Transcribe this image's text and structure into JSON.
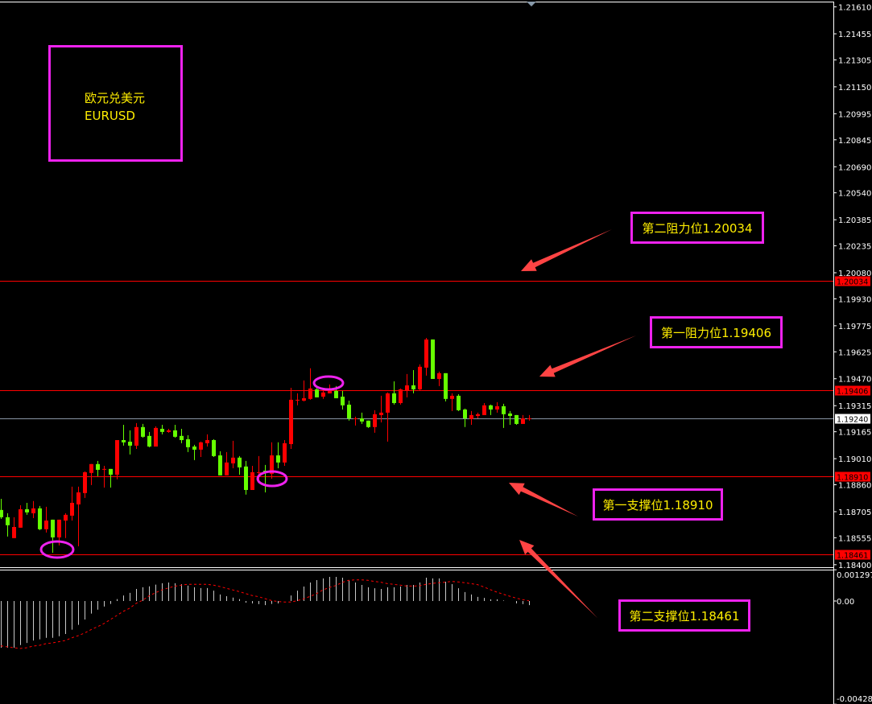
{
  "symbol": {
    "name_cn": "欧元兑美元",
    "name_en": "EURUSD"
  },
  "annotations": {
    "resistance2": "第二阻力位1.20034",
    "resistance1": "第一阻力位1.19406",
    "support1": "第一支撑位1.18910",
    "support2": "第二支撑位1.18461"
  },
  "colors": {
    "up": "#ff0000",
    "down": "#66ff00",
    "level": "#ff0000",
    "annotation_border": "#ee22ee",
    "annotation_text": "#ffee00",
    "arrow": "#ff4444",
    "histogram": "#c8c8c8",
    "signal": "#ff0000"
  },
  "chart_data": [
    {
      "type": "candlestick",
      "title": "",
      "color_convention": "red = rising, green = falling",
      "ylim": [
        1.184,
        1.2161
      ],
      "y_ticks": [
        "1.21610",
        "1.21455",
        "1.21305",
        "1.21150",
        "1.20995",
        "1.20845",
        "1.20690",
        "1.20540",
        "1.20385",
        "1.20235",
        "1.20080",
        "1.19930",
        "1.19775",
        "1.19625",
        "1.19470",
        "1.19315",
        "1.19165",
        "1.19010",
        "1.18860",
        "1.18705",
        "1.18555",
        "1.18400"
      ],
      "levels": [
        {
          "value": "1.20034",
          "type": "resistance"
        },
        {
          "value": "1.19406",
          "type": "resistance"
        },
        {
          "value": "1.18910",
          "type": "support"
        },
        {
          "value": "1.18461",
          "type": "support"
        }
      ],
      "current_price": "1.19240",
      "ohlc": [
        [
          1.18715,
          1.18779,
          1.18664,
          1.18673
        ],
        [
          1.18673,
          1.18696,
          1.18562,
          1.18627
        ],
        [
          1.18553,
          1.18673,
          1.18553,
          1.18617
        ],
        [
          1.18613,
          1.18742,
          1.18613,
          1.18719
        ],
        [
          1.18719,
          1.18756,
          1.18687,
          1.18701
        ],
        [
          1.18696,
          1.18766,
          1.18668,
          1.18724
        ],
        [
          1.18724,
          1.18738,
          1.18599,
          1.18604
        ],
        [
          1.18604,
          1.18733,
          1.18585,
          1.18654
        ],
        [
          1.18659,
          1.18659,
          1.18469,
          1.18557
        ],
        [
          1.18557,
          1.18659,
          1.18511,
          1.18659
        ],
        [
          1.18654,
          1.18696,
          1.18553,
          1.18687
        ],
        [
          1.18682,
          1.18849,
          1.18654,
          1.18756
        ],
        [
          1.18747,
          1.18849,
          1.18506,
          1.18816
        ],
        [
          1.18812,
          1.18937,
          1.18784,
          1.18932
        ],
        [
          1.18928,
          1.18979,
          1.18858,
          1.18979
        ],
        [
          1.18979,
          1.18997,
          1.18909,
          1.18946
        ],
        [
          1.18951,
          1.18969,
          1.18844,
          1.18951
        ],
        [
          1.18951,
          1.18951,
          1.18844,
          1.18918
        ],
        [
          1.18918,
          1.19117,
          1.18891,
          1.19117
        ],
        [
          1.19117,
          1.19205,
          1.19085,
          1.19104
        ],
        [
          1.19108,
          1.19173,
          1.19034,
          1.19085
        ],
        [
          1.19085,
          1.19215,
          1.19066,
          1.19192
        ],
        [
          1.19192,
          1.1921,
          1.19131,
          1.19136
        ],
        [
          1.19141,
          1.19164,
          1.19076,
          1.1908
        ],
        [
          1.1908,
          1.19196,
          1.1908,
          1.19187
        ],
        [
          1.19182,
          1.19205,
          1.1915,
          1.19164
        ],
        [
          1.19164,
          1.19182,
          1.19159,
          1.19173
        ],
        [
          1.19173,
          1.19205,
          1.19131,
          1.19136
        ],
        [
          1.19141,
          1.19182,
          1.19099,
          1.19117
        ],
        [
          1.19122,
          1.19145,
          1.19048,
          1.19076
        ],
        [
          1.1908,
          1.1909,
          1.19002,
          1.19062
        ],
        [
          1.19062,
          1.19108,
          1.1902,
          1.19104
        ],
        [
          1.19099,
          1.1915,
          1.1908,
          1.19117
        ],
        [
          1.19117,
          1.19122,
          1.1902,
          1.19025
        ],
        [
          1.19029,
          1.19053,
          1.18914,
          1.18914
        ],
        [
          1.18914,
          1.19048,
          1.18914,
          1.18988
        ],
        [
          1.18983,
          1.19113,
          1.18955,
          1.19016
        ],
        [
          1.19016,
          1.19025,
          1.18918,
          1.1896
        ],
        [
          1.18965,
          1.18997,
          1.18803,
          1.1883
        ],
        [
          1.1883,
          1.18969,
          1.1883,
          1.18932
        ],
        [
          1.18932,
          1.19025,
          1.18886,
          1.18932
        ],
        [
          1.18941,
          1.18974,
          1.18816,
          1.18932
        ],
        [
          1.18923,
          1.19104,
          1.18895,
          1.19029
        ],
        [
          1.19029,
          1.19104,
          1.18955,
          1.18988
        ],
        [
          1.18988,
          1.19117,
          1.18969,
          1.19099
        ],
        [
          1.19094,
          1.19418,
          1.19066,
          1.19349
        ],
        [
          1.19349,
          1.19386,
          1.19317,
          1.19349
        ],
        [
          1.19344,
          1.1946,
          1.1934,
          1.19358
        ],
        [
          1.19354,
          1.1953,
          1.19349,
          1.19414
        ],
        [
          1.19409,
          1.19418,
          1.19363,
          1.19363
        ],
        [
          1.19367,
          1.194,
          1.19354,
          1.19391
        ],
        [
          1.19386,
          1.19437,
          1.19386,
          1.194
        ],
        [
          1.194,
          1.19428,
          1.19358,
          1.19358
        ],
        [
          1.19367,
          1.194,
          1.19293,
          1.19317
        ],
        [
          1.19321,
          1.19344,
          1.19229,
          1.19242
        ],
        [
          1.19242,
          1.19252,
          1.19201,
          1.19242
        ],
        [
          1.19242,
          1.19275,
          1.1921,
          1.19224
        ],
        [
          1.19229,
          1.19229,
          1.19187,
          1.19192
        ],
        [
          1.19192,
          1.19289,
          1.19159,
          1.19266
        ],
        [
          1.19261,
          1.19372,
          1.19219,
          1.19275
        ],
        [
          1.19275,
          1.19391,
          1.19108,
          1.19386
        ],
        [
          1.19386,
          1.19455,
          1.19321,
          1.1933
        ],
        [
          1.1933,
          1.19414,
          1.19321,
          1.19409
        ],
        [
          1.194,
          1.19497,
          1.19363,
          1.19432
        ],
        [
          1.19432,
          1.1952,
          1.19386,
          1.19409
        ],
        [
          1.19409,
          1.19553,
          1.194,
          1.19539
        ],
        [
          1.19534,
          1.19705,
          1.19488,
          1.19696
        ],
        [
          1.19696,
          1.19696,
          1.19469,
          1.19469
        ],
        [
          1.19469,
          1.19511,
          1.19428,
          1.19502
        ],
        [
          1.19502,
          1.19502,
          1.1934,
          1.19354
        ],
        [
          1.19354,
          1.19386,
          1.19284,
          1.19372
        ],
        [
          1.19372,
          1.19381,
          1.19284,
          1.19289
        ],
        [
          1.19293,
          1.19298,
          1.19192,
          1.19242
        ],
        [
          1.19238,
          1.19284,
          1.19205,
          1.19261
        ],
        [
          1.19256,
          1.19275,
          1.19242,
          1.19266
        ],
        [
          1.19261,
          1.1933,
          1.19261,
          1.19317
        ],
        [
          1.19317,
          1.19321,
          1.19261,
          1.19293
        ],
        [
          1.19293,
          1.19335,
          1.19275,
          1.19312
        ],
        [
          1.19312,
          1.19326,
          1.19187,
          1.19266
        ],
        [
          1.1927,
          1.19284,
          1.19205,
          1.19256
        ],
        [
          1.19261,
          1.19261,
          1.19205,
          1.1921
        ],
        [
          1.1921,
          1.19261,
          1.1921,
          1.19242
        ],
        [
          1.19242,
          1.19261,
          1.19229,
          1.19242
        ]
      ]
    },
    {
      "type": "macd",
      "ylim": [
        -0.004282,
        0.001297
      ],
      "y_ticks": [
        "0.001297",
        "0.00",
        "-0.004282"
      ],
      "histogram": [
        -0.00194,
        -0.00194,
        -0.00194,
        -0.00183,
        -0.00174,
        -0.00164,
        -0.00159,
        -0.00153,
        -0.00153,
        -0.00146,
        -0.00137,
        -0.00119,
        -0.00099,
        -0.00077,
        -0.00052,
        -0.00036,
        -0.00023,
        -0.00012,
        8e-05,
        0.00023,
        0.00034,
        0.0005,
        0.00057,
        0.00061,
        0.00068,
        0.00074,
        0.00077,
        0.00074,
        0.0007,
        0.00064,
        0.00057,
        0.00054,
        0.00054,
        0.00043,
        0.00027,
        0.0002,
        0.00014,
        8e-05,
        -7e-05,
        -0.0001,
        -0.00013,
        -0.00017,
        -0.00012,
        -0.0001,
        0.0,
        0.00023,
        0.00043,
        0.0006,
        0.00077,
        0.00087,
        0.00094,
        0.001,
        0.001,
        0.00097,
        0.00087,
        0.00077,
        0.00067,
        0.00057,
        0.00053,
        0.0005,
        0.00057,
        0.00057,
        0.0006,
        0.00067,
        0.00067,
        0.00077,
        0.00097,
        0.00094,
        0.00094,
        0.0008,
        0.0007,
        0.00053,
        0.00037,
        0.00027,
        0.00017,
        0.00013,
        7e-05,
        7e-05,
        2e-05,
        0.0,
        -0.0001,
        -0.00013,
        -0.00017
      ],
      "signal": [
        -0.00186,
        -0.0019,
        -0.00194,
        -0.00197,
        -0.00194,
        -0.00187,
        -0.00184,
        -0.00177,
        -0.00174,
        -0.00169,
        -0.00164,
        -0.00153,
        -0.00144,
        -0.00133,
        -0.00119,
        -0.00107,
        -0.00094,
        -0.00077,
        -0.0006,
        -0.00043,
        -0.0003,
        -0.0001,
        3e-05,
        0.00021,
        0.00034,
        0.00046,
        0.00054,
        0.00061,
        0.00066,
        0.00069,
        0.00069,
        0.00069,
        0.00069,
        0.00066,
        0.0006,
        0.00053,
        0.00046,
        0.00039,
        0.00031,
        0.00023,
        0.00018,
        0.0001,
        2e-05,
        -2e-05,
        -4e-05,
        -4e-05,
        1e-05,
        9e-05,
        0.00019,
        0.0003,
        0.00046,
        0.00056,
        0.00064,
        0.00077,
        0.00086,
        0.00088,
        0.00088,
        0.00086,
        0.00081,
        0.00078,
        0.00072,
        0.00069,
        0.00066,
        0.00062,
        0.00062,
        0.00063,
        0.00069,
        0.00073,
        0.00076,
        0.00078,
        0.00081,
        0.00079,
        0.00076,
        0.00072,
        0.00068,
        0.00058,
        0.00047,
        0.00037,
        0.00028,
        0.0002,
        0.00012,
        6e-05,
        1e-05
      ]
    }
  ]
}
